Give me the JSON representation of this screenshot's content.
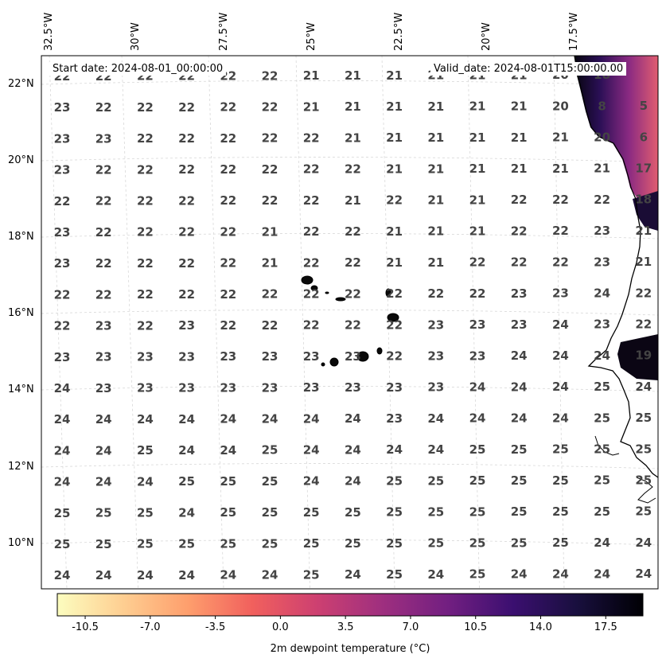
{
  "map": {
    "start_date_label": "Start date: 2024-08-01_00:00:00",
    "valid_date_label": "Valid_date: 2024-08-01T15:00:00.00",
    "lon_labels": [
      "32.5°W",
      "30°W",
      "27.5°W",
      "25°W",
      "22.5°W",
      "20°W",
      "17.5°W"
    ],
    "lat_labels": [
      "22°N",
      "20°N",
      "18°N",
      "16°N",
      "14°N",
      "12°N",
      "10°N"
    ],
    "value_grid": [
      [
        "22",
        "22",
        "22",
        "22",
        "22",
        "22",
        "21",
        "21",
        "21",
        "21",
        "21",
        "21",
        "20",
        "18"
      ],
      [
        "23",
        "22",
        "22",
        "22",
        "22",
        "22",
        "21",
        "21",
        "21",
        "21",
        "21",
        "21",
        "20",
        "8",
        "5"
      ],
      [
        "23",
        "23",
        "22",
        "22",
        "22",
        "22",
        "22",
        "21",
        "21",
        "21",
        "21",
        "21",
        "21",
        "20",
        "6"
      ],
      [
        "23",
        "22",
        "22",
        "22",
        "22",
        "22",
        "22",
        "22",
        "21",
        "21",
        "21",
        "21",
        "21",
        "21",
        "17"
      ],
      [
        "22",
        "22",
        "22",
        "22",
        "22",
        "22",
        "22",
        "21",
        "22",
        "21",
        "21",
        "22",
        "22",
        "22",
        "18"
      ],
      [
        "23",
        "22",
        "22",
        "22",
        "22",
        "21",
        "22",
        "22",
        "21",
        "21",
        "21",
        "22",
        "22",
        "23",
        "21"
      ],
      [
        "23",
        "22",
        "22",
        "22",
        "22",
        "21",
        "22",
        "22",
        "21",
        "21",
        "22",
        "22",
        "22",
        "23",
        "21"
      ],
      [
        "22",
        "22",
        "22",
        "22",
        "22",
        "22",
        "22",
        "22",
        "22",
        "22",
        "22",
        "23",
        "23",
        "24",
        "22"
      ],
      [
        "22",
        "23",
        "22",
        "23",
        "22",
        "22",
        "22",
        "22",
        "22",
        "23",
        "23",
        "23",
        "24",
        "23",
        "22"
      ],
      [
        "23",
        "23",
        "23",
        "23",
        "23",
        "23",
        "23",
        "23",
        "22",
        "23",
        "23",
        "24",
        "24",
        "24",
        "19"
      ],
      [
        "24",
        "23",
        "23",
        "23",
        "23",
        "23",
        "23",
        "23",
        "23",
        "23",
        "24",
        "24",
        "24",
        "25",
        "24"
      ],
      [
        "24",
        "24",
        "24",
        "24",
        "24",
        "24",
        "24",
        "24",
        "23",
        "24",
        "24",
        "24",
        "24",
        "25",
        "25"
      ],
      [
        "24",
        "24",
        "25",
        "24",
        "24",
        "25",
        "24",
        "24",
        "24",
        "24",
        "25",
        "25",
        "25",
        "25",
        "25"
      ],
      [
        "24",
        "24",
        "24",
        "25",
        "25",
        "25",
        "24",
        "24",
        "25",
        "25",
        "25",
        "25",
        "25",
        "25",
        "25"
      ],
      [
        "25",
        "25",
        "25",
        "24",
        "25",
        "25",
        "25",
        "25",
        "25",
        "25",
        "25",
        "25",
        "25",
        "25",
        "25"
      ],
      [
        "25",
        "25",
        "25",
        "25",
        "25",
        "25",
        "25",
        "25",
        "25",
        "25",
        "25",
        "25",
        "25",
        "24",
        "24"
      ],
      [
        "24",
        "24",
        "24",
        "24",
        "24",
        "24",
        "25",
        "24",
        "25",
        "24",
        "25",
        "24",
        "24",
        "24",
        "24"
      ]
    ],
    "colormap": "magma_r",
    "value_color": "#444444"
  },
  "colorbar": {
    "title": "2m dewpoint temperature ($^\\circ$C)",
    "title_display": "2m dewpoint temperature (°C)",
    "tick_labels": [
      "-10.5",
      "-7.0",
      "-3.5",
      "0.0",
      "3.5",
      "7.0",
      "10.5",
      "14.0",
      "17.5"
    ],
    "tick_values": [
      -10.5,
      -7.0,
      -3.5,
      0.0,
      3.5,
      7.0,
      10.5,
      14.0,
      17.5
    ],
    "vmin": -12,
    "vmax": 19.5,
    "colors": [
      "#fcfdbf",
      "#fecf92",
      "#fe9f6d",
      "#f1605d",
      "#cd4071",
      "#9e2f7f",
      "#721f81",
      "#3b0f70",
      "#180f3d",
      "#000004"
    ]
  }
}
